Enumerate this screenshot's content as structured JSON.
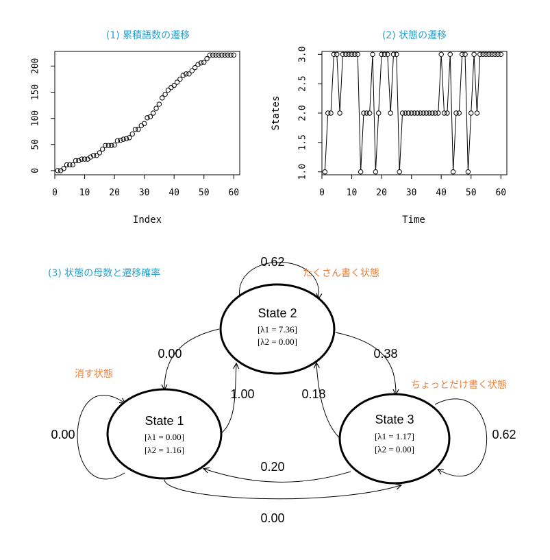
{
  "chart_data": [
    {
      "type": "scatter",
      "title": "(1) 累積語数の遷移",
      "xlabel": "Index",
      "ylabel": "",
      "xlim": [
        0,
        62
      ],
      "ylim": [
        -8,
        228
      ],
      "xticks": [
        0,
        10,
        20,
        30,
        40,
        50,
        60
      ],
      "yticks": [
        0,
        50,
        100,
        150,
        200
      ],
      "marker": "open-circle",
      "y": [
        0,
        0,
        4,
        11,
        11,
        11,
        19,
        19,
        22,
        22,
        22,
        26,
        29,
        29,
        34,
        41,
        48,
        48,
        48,
        49,
        57,
        58,
        60,
        61,
        63,
        70,
        79,
        79,
        86,
        90,
        101,
        103,
        110,
        119,
        127,
        139,
        146,
        154,
        159,
        163,
        169,
        175,
        182,
        185,
        185,
        191,
        197,
        203,
        206,
        207,
        214,
        221,
        221,
        221,
        221,
        221,
        221,
        221,
        221,
        221
      ]
    },
    {
      "type": "line",
      "title": "(2) 状態の遷移",
      "xlabel": "Time",
      "ylabel": "States",
      "xlim": [
        0,
        62
      ],
      "ylim": [
        0.95,
        3.05
      ],
      "xticks": [
        0,
        10,
        20,
        30,
        40,
        50,
        60
      ],
      "yticks": [
        1.0,
        1.5,
        2.0,
        2.5,
        3.0
      ],
      "marker": "open-circle",
      "y": [
        1,
        2,
        2,
        3,
        3,
        2,
        3,
        3,
        3,
        3,
        3,
        3,
        1,
        2,
        2,
        2,
        3,
        1,
        2,
        3,
        3,
        3,
        2,
        3,
        3,
        1,
        2,
        2,
        2,
        2,
        2,
        2,
        2,
        2,
        2,
        2,
        2,
        2,
        2,
        3,
        2,
        2,
        3,
        1,
        2,
        2,
        3,
        3,
        1,
        2,
        3,
        2,
        3,
        3,
        3,
        3,
        3,
        3,
        3,
        3
      ]
    }
  ],
  "diagram": {
    "title": "(3) 状態の母数と遷移確率",
    "states": [
      {
        "name": "State 1",
        "lambda1": "[λ1 = 0.00]",
        "lambda2": "[λ2 = 1.16]",
        "note": "消す状態"
      },
      {
        "name": "State 2",
        "lambda1": "[λ1 = 7.36]",
        "lambda2": "[λ2 = 0.00]",
        "note": "たくさん書く状態"
      },
      {
        "name": "State 3",
        "lambda1": "[λ1 = 1.17]",
        "lambda2": "[λ2 = 0.00]",
        "note": "ちょっとだけ書く状態"
      }
    ],
    "transitions": {
      "s1_s1": "0.00",
      "s2_s2": "0.62",
      "s3_s3": "0.62",
      "s2_s1": "0.00",
      "s1_s2": "1.00",
      "s2_s3": "0.38",
      "s3_s2": "0.18",
      "s3_s1": "0.20",
      "s1_s3": "0.00"
    }
  }
}
